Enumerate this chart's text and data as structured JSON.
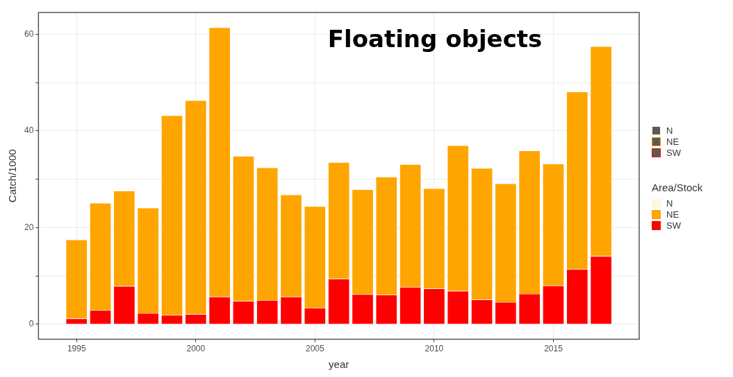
{
  "chart_data": {
    "type": "bar",
    "stacked": true,
    "x": [
      1995,
      1996,
      1997,
      1998,
      1999,
      2000,
      2001,
      2002,
      2003,
      2004,
      2005,
      2006,
      2007,
      2008,
      2009,
      2010,
      2011,
      2012,
      2013,
      2014,
      2015,
      2016,
      2017
    ],
    "series": [
      {
        "name": "SW",
        "color": "#ff0000",
        "values": [
          1.2,
          2.9,
          7.9,
          2.3,
          1.9,
          2.1,
          5.7,
          4.8,
          5.0,
          5.7,
          3.4,
          9.4,
          6.2,
          6.1,
          7.7,
          7.4,
          6.9,
          5.1,
          4.6,
          6.3,
          8.0,
          11.4,
          14.1
        ]
      },
      {
        "name": "NE",
        "color": "#ffa500",
        "values": [
          16.3,
          22.2,
          19.7,
          21.8,
          41.3,
          44.2,
          55.7,
          30.0,
          27.4,
          21.1,
          21.0,
          24.1,
          21.7,
          24.4,
          25.4,
          20.7,
          30.1,
          27.2,
          24.5,
          29.6,
          25.2,
          36.7,
          43.4
        ]
      },
      {
        "name": "N",
        "color": "#fff8dc",
        "values": [
          0,
          0,
          0,
          0,
          0,
          0,
          0,
          0,
          0,
          0,
          0,
          0,
          0,
          0,
          0,
          0,
          0,
          0,
          0,
          0,
          0,
          0,
          0
        ]
      }
    ],
    "xlim": [
      1993.4,
      2018.6
    ],
    "xticks": [
      1995,
      2000,
      2005,
      2010,
      2015
    ],
    "ylim": [
      -3.1,
      64.5
    ],
    "yticks": [
      0,
      {
        "value": 10,
        "label": null
      },
      20,
      {
        "value": 30,
        "label": null
      },
      40,
      {
        "value": 50,
        "label": null
      },
      60
    ],
    "xlabel": "year",
    "ylabel": "Catch/1000",
    "legend_title": "Area/Stock",
    "legend": "right",
    "grid": true,
    "annotations": [
      "Floating objects"
    ]
  }
}
